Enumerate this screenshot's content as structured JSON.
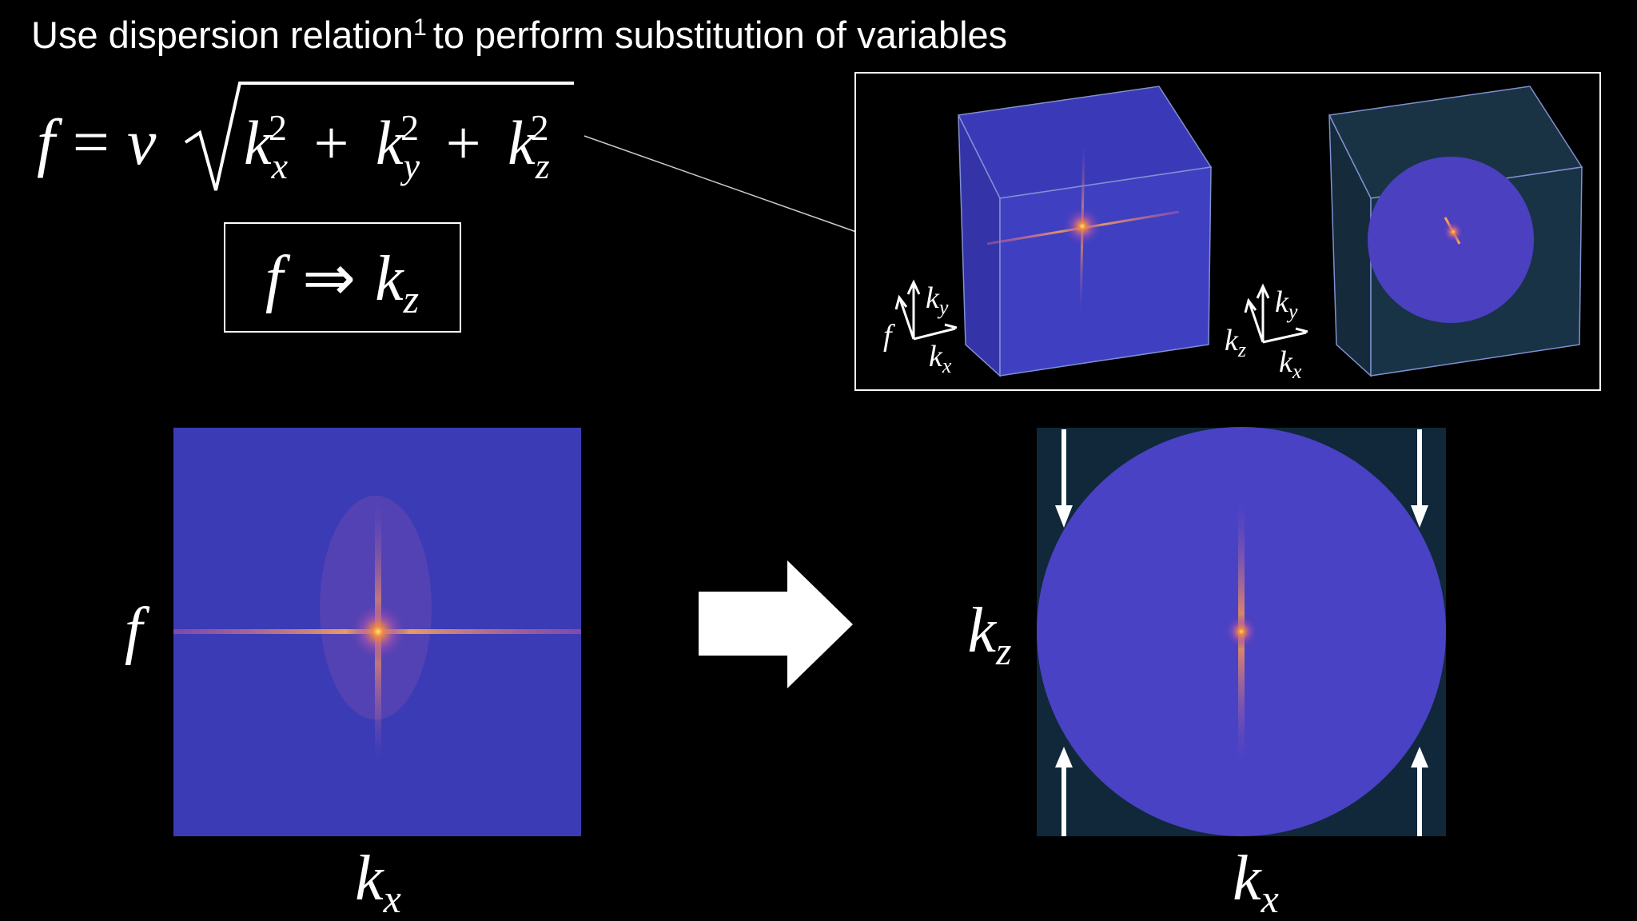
{
  "header": {
    "title": "Use dispersion relation",
    "footnote_mark": "1",
    "title_rest": "to perform substitution of variables"
  },
  "equation": {
    "lhs": "f",
    "equals": "=",
    "coefficient": "v",
    "operator": "+",
    "terms": [
      {
        "base": "k",
        "sub": "x",
        "sup": "2"
      },
      {
        "base": "k",
        "sub": "y",
        "sup": "2"
      },
      {
        "base": "k",
        "sub": "z",
        "sup": "2"
      }
    ]
  },
  "substitution": {
    "from": "f",
    "arrow": "⇒",
    "to_base": "k",
    "to_sub": "z"
  },
  "inset": {
    "left_axes": {
      "vertical": {
        "base": "k",
        "sub": "y"
      },
      "depth": "f",
      "horizontal": {
        "base": "k",
        "sub": "x"
      }
    },
    "right_axes": {
      "vertical": {
        "base": "k",
        "sub": "y"
      },
      "depth": {
        "base": "k",
        "sub": "z"
      },
      "horizontal": {
        "base": "k",
        "sub": "x"
      }
    }
  },
  "panels": {
    "left": {
      "y_label": "f",
      "x_label": {
        "base": "k",
        "sub": "x"
      }
    },
    "right": {
      "y_label": {
        "base": "k",
        "sub": "z"
      },
      "x_label": {
        "base": "k",
        "sub": "x"
      }
    }
  }
}
